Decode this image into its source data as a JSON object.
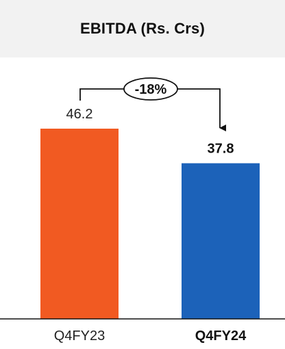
{
  "chart_data": {
    "type": "bar",
    "title": "EBITDA (Rs. Crs)",
    "categories": [
      "Q4FY23",
      "Q4FY24"
    ],
    "values": [
      46.2,
      37.8
    ],
    "value_labels": [
      "46.2",
      "37.8"
    ],
    "colors": [
      "#f15a22",
      "#1c62b9"
    ],
    "emphasized_category": "Q4FY24",
    "change_annotation": "-18%",
    "xlabel": "",
    "ylabel": "",
    "ylim": [
      0,
      46.2
    ],
    "grid": false,
    "legend": "none"
  }
}
